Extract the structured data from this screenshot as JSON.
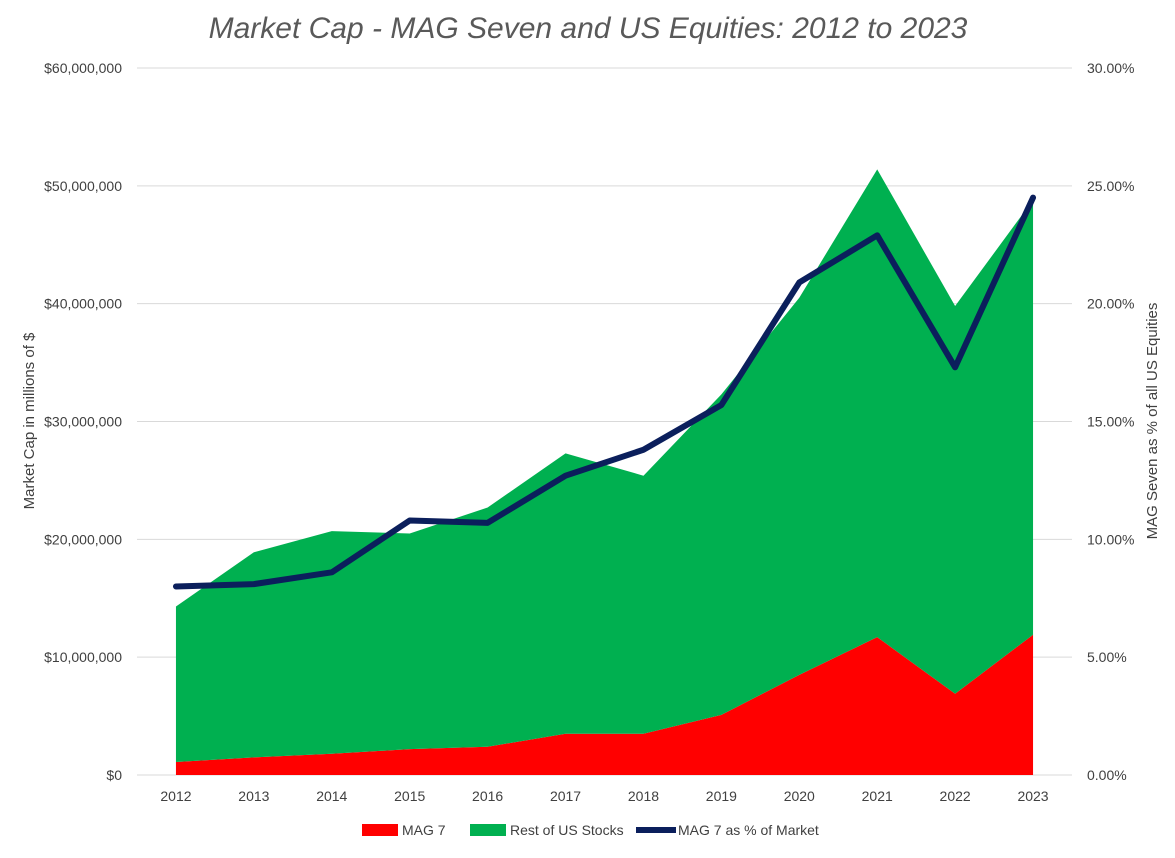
{
  "chart_data": {
    "type": "area",
    "title": "Market Cap - MAG Seven and US Equities: 2012 to 2023",
    "ylabel": "Market Cap in millions of $",
    "y2label": "MAG Seven as % of all US Equities",
    "categories": [
      "2012",
      "2013",
      "2014",
      "2015",
      "2016",
      "2017",
      "2018",
      "2019",
      "2020",
      "2021",
      "2022",
      "2023"
    ],
    "ylim": [
      0,
      60000000
    ],
    "y2lim": [
      0,
      0.3
    ],
    "y_ticks": [
      0,
      10000000,
      20000000,
      30000000,
      40000000,
      50000000,
      60000000
    ],
    "y_tick_labels": [
      "$0",
      "$10,000,000",
      "$20,000,000",
      "$30,000,000",
      "$40,000,000",
      "$50,000,000",
      "$60,000,000"
    ],
    "y2_ticks": [
      0,
      0.05,
      0.1,
      0.15,
      0.2,
      0.25,
      0.3
    ],
    "y2_tick_labels": [
      "0.00%",
      "5.00%",
      "10.00%",
      "15.00%",
      "20.00%",
      "25.00%",
      "30.00%"
    ],
    "grid": true,
    "legend_position": "bottom",
    "series": [
      {
        "name": "MAG 7",
        "type": "stacked-area",
        "axis": "left",
        "color": "#ff0000",
        "values": [
          1100000,
          1500000,
          1800000,
          2200000,
          2400000,
          3500000,
          3500000,
          5100000,
          8500000,
          11700000,
          6900000,
          11900000
        ]
      },
      {
        "name": "Rest of US Stocks",
        "type": "stacked-area",
        "axis": "left",
        "color": "#00b050",
        "values": [
          13200000,
          17400000,
          18900000,
          18300000,
          20300000,
          23800000,
          21900000,
          27200000,
          32000000,
          39700000,
          32900000,
          36900000
        ]
      },
      {
        "name": "MAG 7 as % of Market",
        "type": "line",
        "axis": "right",
        "color": "#0b1f5c",
        "values": [
          0.08,
          0.081,
          0.086,
          0.108,
          0.107,
          0.127,
          0.138,
          0.157,
          0.209,
          0.229,
          0.173,
          0.245
        ]
      }
    ]
  }
}
